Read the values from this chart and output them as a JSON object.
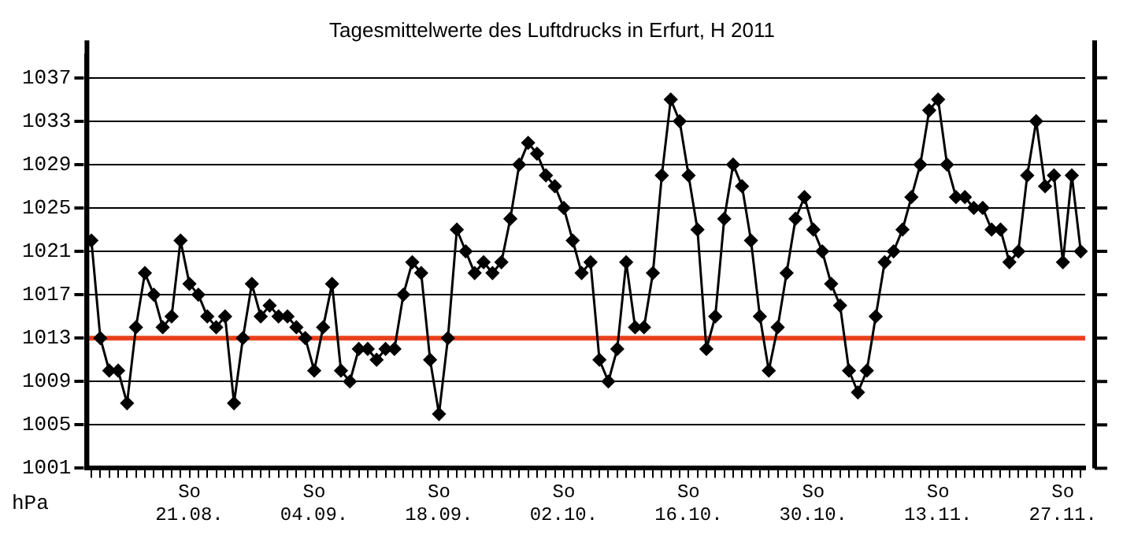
{
  "chart_data": {
    "type": "line",
    "title": "Tagesmittelwerte des Luftdrucks in Erfurt, H 2011",
    "ylabel": "hPa",
    "categories": [
      null,
      null,
      null,
      null,
      null,
      null,
      null,
      null,
      null,
      null,
      null,
      "So 21.08.",
      null,
      null,
      null,
      null,
      null,
      null,
      null,
      null,
      null,
      null,
      null,
      null,
      null,
      "So 04.09.",
      null,
      null,
      null,
      null,
      null,
      null,
      null,
      null,
      null,
      null,
      null,
      null,
      null,
      "So 18.09.",
      null,
      null,
      null,
      null,
      null,
      null,
      null,
      null,
      null,
      null,
      null,
      null,
      null,
      "So 02.10.",
      null,
      null,
      null,
      null,
      null,
      null,
      null,
      null,
      null,
      null,
      null,
      null,
      null,
      "So 16.10.",
      null,
      null,
      null,
      null,
      null,
      null,
      null,
      null,
      null,
      null,
      null,
      null,
      null,
      "So 30.10.",
      null,
      null,
      null,
      null,
      null,
      null,
      null,
      null,
      null,
      null,
      null,
      null,
      null,
      "So 13.11.",
      null,
      null,
      null,
      null,
      null,
      null,
      null,
      null,
      null,
      null,
      null,
      null,
      null,
      "So 27.11.",
      null,
      null
    ],
    "series": [
      {
        "color": "#000000",
        "values": [
          1022,
          1013,
          1010,
          1010,
          1007,
          1014,
          1019,
          1017,
          1014,
          1015,
          1022,
          1018,
          1017,
          1015,
          1014,
          1015,
          1007,
          1013,
          1018,
          1015,
          1016,
          1015,
          1015,
          1014,
          1013,
          1010,
          1014,
          1018,
          1010,
          1009,
          1012,
          1012,
          1011,
          1012,
          1012,
          1017,
          1020,
          1019,
          1011,
          1006,
          1013,
          1023,
          1021,
          1019,
          1020,
          1019,
          1020,
          1024,
          1029,
          1031,
          1030,
          1028,
          1027,
          1025,
          1022,
          1019,
          1020,
          1011,
          1009,
          1012,
          1020,
          1014,
          1014,
          1019,
          1028,
          1035,
          1033,
          1028,
          1023,
          1012,
          1015,
          1024,
          1029,
          1027,
          1022,
          1015,
          1010,
          1014,
          1019,
          1024,
          1026,
          1023,
          1021,
          1018,
          1016,
          1010,
          1008,
          1010,
          1015,
          1020,
          1021,
          1023,
          1026,
          1029,
          1034,
          1035,
          1029,
          1026,
          1026,
          1025,
          1025,
          1023,
          1023,
          1020,
          1021,
          1028,
          1033,
          1027,
          1028,
          1020,
          1028,
          1021
        ]
      }
    ],
    "ylim": [
      1001,
      1039
    ],
    "yticks": [
      1001,
      1005,
      1009,
      1013,
      1017,
      1021,
      1025,
      1029,
      1033,
      1037
    ],
    "grid": "y",
    "marker": "diamond",
    "line_style": "solid",
    "legend": false,
    "ref_lines": [
      {
        "axis": "y",
        "value": 1013,
        "color": "#e8401c"
      }
    ]
  }
}
